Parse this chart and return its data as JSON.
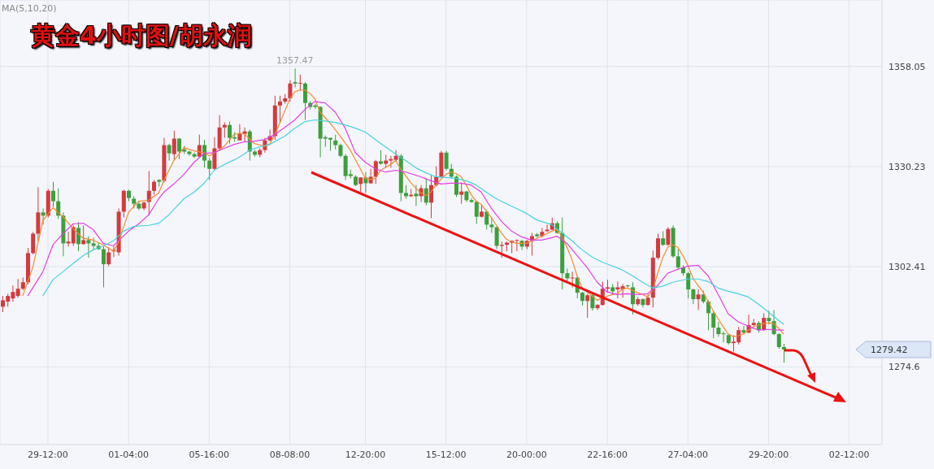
{
  "chart_data": {
    "type": "candlestick",
    "title": "黄金4小时图/胡永润",
    "annotations": [
      "MA(5,10,20)",
      {
        "text": "1357.47",
        "y": 1357.47
      },
      "1279.42"
    ],
    "categories": [
      null,
      null,
      null,
      null,
      null,
      null,
      null,
      null,
      null,
      "29-12:00",
      null,
      null,
      null,
      null,
      null,
      null,
      null,
      null,
      null,
      null,
      null,
      null,
      null,
      null,
      null,
      "01-04:00",
      null,
      null,
      null,
      null,
      null,
      null,
      null,
      null,
      null,
      null,
      null,
      null,
      null,
      null,
      null,
      "05-16:00",
      null,
      null,
      null,
      null,
      null,
      null,
      null,
      null,
      null,
      null,
      null,
      null,
      null,
      null,
      null,
      "08-08:00",
      null,
      null,
      null,
      null,
      null,
      null,
      null,
      null,
      null,
      null,
      null,
      null,
      null,
      null,
      "12-20:00",
      null,
      null,
      null,
      null,
      null,
      null,
      null,
      null,
      null,
      null,
      null,
      null,
      null,
      null,
      null,
      "15-12:00",
      null,
      null,
      null,
      null,
      null,
      null,
      null,
      null,
      null,
      null,
      null,
      null,
      null,
      null,
      null,
      "20-00:00",
      null,
      null,
      null,
      null,
      null,
      null,
      null,
      null,
      null,
      null,
      null,
      null,
      null,
      null,
      null,
      "22-16:00",
      null,
      null,
      null,
      null,
      null,
      null,
      null,
      null,
      null,
      null,
      null,
      null,
      null,
      null,
      null,
      "27-04:00",
      null,
      null,
      null,
      null,
      null,
      null,
      null,
      null,
      null,
      null,
      null,
      null,
      null,
      null,
      null,
      "29-20:00",
      null,
      null,
      null,
      null,
      null,
      null,
      null,
      null,
      null,
      null,
      null,
      null,
      null,
      null,
      null,
      "02-12:00",
      null,
      null,
      null,
      null,
      null,
      null
    ],
    "ohlc": [
      [
        1291.3,
        1294.3,
        1289.8,
        1293.1
      ],
      [
        1292.7,
        1294.9,
        1291.3,
        1294.3
      ],
      [
        1293.6,
        1297.2,
        1292.7,
        1295.4
      ],
      [
        1294.3,
        1299.0,
        1293.8,
        1296.3
      ],
      [
        1296.3,
        1299.4,
        1295.9,
        1298.1
      ],
      [
        1298.1,
        1307.6,
        1297.6,
        1306.2
      ],
      [
        1306.2,
        1312.1,
        1305.8,
        1311.6
      ],
      [
        1311.6,
        1324.5,
        1309.6,
        1317.5
      ],
      [
        1317.5,
        1318.6,
        1314.1,
        1316.6
      ],
      [
        1316.6,
        1324.0,
        1316.1,
        1323.5
      ],
      [
        1323.5,
        1326.0,
        1319.0,
        1320.6
      ],
      [
        1320.6,
        1324.2,
        1315.7,
        1316.6
      ],
      [
        1316.6,
        1317.5,
        1305.3,
        1308.9
      ],
      [
        1308.9,
        1312.1,
        1308.0,
        1309.4
      ],
      [
        1308.9,
        1313.9,
        1308.2,
        1313.4
      ],
      [
        1313.2,
        1314.8,
        1306.7,
        1308.7
      ],
      [
        1308.7,
        1313.9,
        1308.5,
        1309.8
      ],
      [
        1309.8,
        1310.9,
        1304.9,
        1308.9
      ],
      [
        1308.9,
        1310.5,
        1307.1,
        1308.2
      ],
      [
        1308.2,
        1309.1,
        1307.1,
        1307.3
      ],
      [
        1307.3,
        1308.0,
        1296.7,
        1303.1
      ],
      [
        1303.1,
        1307.8,
        1302.6,
        1306.4
      ],
      [
        1306.7,
        1308.0,
        1305.1,
        1307.1
      ],
      [
        1306.4,
        1318.6,
        1305.5,
        1317.7
      ],
      [
        1317.7,
        1323.8,
        1316.1,
        1323.5
      ],
      [
        1323.5,
        1323.8,
        1320.6,
        1321.5
      ],
      [
        1321.3,
        1322.0,
        1318.6,
        1319.9
      ],
      [
        1319.9,
        1320.6,
        1318.1,
        1318.6
      ],
      [
        1318.6,
        1320.6,
        1318.1,
        1320.2
      ],
      [
        1320.4,
        1329.0,
        1316.6,
        1323.5
      ],
      [
        1323.5,
        1326.5,
        1322.4,
        1326.0
      ],
      [
        1326.5,
        1326.7,
        1324.7,
        1326.0
      ],
      [
        1326.3,
        1338.2,
        1325.8,
        1336.2
      ],
      [
        1336.2,
        1336.6,
        1331.9,
        1333.9
      ],
      [
        1333.7,
        1340.2,
        1332.1,
        1338.0
      ],
      [
        1338.0,
        1338.2,
        1332.3,
        1334.4
      ],
      [
        1335.0,
        1336.0,
        1333.7,
        1334.4
      ],
      [
        1334.4,
        1334.6,
        1333.2,
        1333.7
      ],
      [
        1333.7,
        1334.1,
        1332.6,
        1333.0
      ],
      [
        1333.0,
        1339.1,
        1332.8,
        1336.2
      ],
      [
        1336.2,
        1337.7,
        1329.9,
        1331.9
      ],
      [
        1331.9,
        1332.6,
        1326.5,
        1329.6
      ],
      [
        1329.6,
        1338.4,
        1329.2,
        1335.3
      ],
      [
        1335.3,
        1344.5,
        1334.8,
        1341.1
      ],
      [
        1341.1,
        1342.5,
        1338.2,
        1341.8
      ],
      [
        1341.8,
        1342.7,
        1336.6,
        1338.2
      ],
      [
        1338.4,
        1339.8,
        1337.1,
        1338.0
      ],
      [
        1337.5,
        1342.0,
        1337.5,
        1339.5
      ],
      [
        1339.3,
        1341.1,
        1337.1,
        1340.0
      ],
      [
        1340.0,
        1340.5,
        1331.9,
        1334.4
      ],
      [
        1334.4,
        1334.8,
        1333.0,
        1333.5
      ],
      [
        1333.5,
        1335.3,
        1332.8,
        1334.8
      ],
      [
        1334.8,
        1338.2,
        1334.1,
        1337.5
      ],
      [
        1337.5,
        1340.5,
        1337.3,
        1338.7
      ],
      [
        1338.7,
        1349.9,
        1337.7,
        1347.2
      ],
      [
        1347.2,
        1349.9,
        1342.3,
        1348.3
      ],
      [
        1348.3,
        1350.4,
        1347.7,
        1349.2
      ],
      [
        1349.2,
        1354.2,
        1348.3,
        1353.3
      ],
      [
        1353.7,
        1357.47,
        1352.2,
        1353.3
      ],
      [
        1353.3,
        1355.8,
        1351.3,
        1353.5
      ],
      [
        1353.3,
        1353.7,
        1343.2,
        1347.9
      ],
      [
        1347.9,
        1348.3,
        1346.1,
        1346.8
      ],
      [
        1347.2,
        1347.7,
        1346.3,
        1346.8
      ],
      [
        1346.8,
        1347.0,
        1332.8,
        1338.0
      ],
      [
        1338.4,
        1338.9,
        1335.7,
        1338.0
      ],
      [
        1338.2,
        1338.2,
        1334.6,
        1337.7
      ],
      [
        1337.5,
        1339.1,
        1335.0,
        1336.2
      ],
      [
        1336.2,
        1336.6,
        1332.8,
        1333.2
      ],
      [
        1333.2,
        1333.7,
        1326.5,
        1327.6
      ],
      [
        1328.1,
        1329.4,
        1326.9,
        1327.6
      ],
      [
        1327.4,
        1327.8,
        1324.8,
        1325.1
      ],
      [
        1325.4,
        1327.2,
        1323.1,
        1327.2
      ],
      [
        1327.2,
        1328.7,
        1322.9,
        1325.6
      ],
      [
        1325.6,
        1329.6,
        1325.4,
        1327.4
      ],
      [
        1327.4,
        1332.1,
        1325.4,
        1331.7
      ],
      [
        1331.7,
        1334.8,
        1330.8,
        1331.0
      ],
      [
        1331.0,
        1333.5,
        1329.9,
        1331.9
      ],
      [
        1331.9,
        1333.2,
        1329.9,
        1332.3
      ],
      [
        1332.1,
        1334.8,
        1331.7,
        1333.2
      ],
      [
        1333.2,
        1333.7,
        1320.6,
        1322.9
      ],
      [
        1322.9,
        1325.1,
        1321.3,
        1322.0
      ],
      [
        1322.0,
        1324.0,
        1321.8,
        1322.4
      ],
      [
        1322.7,
        1325.1,
        1319.3,
        1322.0
      ],
      [
        1322.0,
        1325.1,
        1320.4,
        1324.2
      ],
      [
        1324.2,
        1327.0,
        1319.5,
        1320.2
      ],
      [
        1320.2,
        1327.8,
        1315.9,
        1325.1
      ],
      [
        1325.1,
        1330.3,
        1324.7,
        1327.4
      ],
      [
        1327.4,
        1334.6,
        1327.0,
        1334.1
      ],
      [
        1334.1,
        1334.6,
        1329.2,
        1329.6
      ],
      [
        1329.6,
        1331.0,
        1327.0,
        1327.4
      ],
      [
        1327.4,
        1327.8,
        1321.8,
        1322.4
      ],
      [
        1322.4,
        1325.8,
        1319.9,
        1323.3
      ],
      [
        1323.3,
        1323.5,
        1320.4,
        1320.9
      ],
      [
        1320.9,
        1321.5,
        1320.2,
        1320.4
      ],
      [
        1320.4,
        1320.6,
        1314.3,
        1316.3
      ],
      [
        1316.3,
        1319.5,
        1316.1,
        1317.7
      ],
      [
        1317.7,
        1318.2,
        1312.7,
        1314.1
      ],
      [
        1314.1,
        1316.1,
        1311.8,
        1313.4
      ],
      [
        1313.4,
        1313.6,
        1307.3,
        1308.2
      ],
      [
        1308.2,
        1309.4,
        1304.9,
        1308.5
      ],
      [
        1308.5,
        1309.4,
        1306.7,
        1309.1
      ],
      [
        1309.1,
        1309.8,
        1306.2,
        1309.6
      ],
      [
        1309.6,
        1310.0,
        1306.7,
        1309.8
      ],
      [
        1309.6,
        1309.8,
        1307.1,
        1308.0
      ],
      [
        1308.0,
        1309.8,
        1307.3,
        1309.6
      ],
      [
        1309.6,
        1311.8,
        1305.5,
        1310.9
      ],
      [
        1311.4,
        1311.8,
        1310.5,
        1310.9
      ],
      [
        1310.9,
        1313.2,
        1310.5,
        1312.1
      ],
      [
        1312.3,
        1314.1,
        1312.1,
        1312.7
      ],
      [
        1312.7,
        1316.1,
        1312.5,
        1314.5
      ],
      [
        1314.5,
        1315.0,
        1311.6,
        1311.8
      ],
      [
        1311.8,
        1316.1,
        1296.1,
        1300.6
      ],
      [
        1300.6,
        1301.9,
        1298.3,
        1299.2
      ],
      [
        1299.2,
        1301.0,
        1296.7,
        1299.4
      ],
      [
        1299.4,
        1299.9,
        1293.6,
        1295.2
      ],
      [
        1295.2,
        1295.4,
        1291.6,
        1292.9
      ],
      [
        1292.9,
        1294.9,
        1288.2,
        1294.5
      ],
      [
        1294.5,
        1294.9,
        1290.2,
        1290.9
      ],
      [
        1290.9,
        1292.0,
        1290.4,
        1291.8
      ],
      [
        1291.8,
        1298.3,
        1291.6,
        1296.3
      ],
      [
        1296.3,
        1298.8,
        1295.2,
        1296.7
      ],
      [
        1296.7,
        1297.6,
        1294.7,
        1295.6
      ],
      [
        1296.1,
        1298.3,
        1293.6,
        1296.7
      ],
      [
        1296.1,
        1297.6,
        1293.8,
        1297.0
      ],
      [
        1297.2,
        1297.4,
        1296.7,
        1297.0
      ],
      [
        1296.7,
        1298.1,
        1289.1,
        1292.0
      ],
      [
        1292.0,
        1294.0,
        1291.6,
        1293.4
      ],
      [
        1293.4,
        1293.6,
        1291.1,
        1291.8
      ],
      [
        1291.8,
        1294.7,
        1291.6,
        1293.8
      ],
      [
        1293.8,
        1306.9,
        1291.1,
        1304.9
      ],
      [
        1304.9,
        1311.6,
        1304.4,
        1310.3
      ],
      [
        1310.3,
        1312.3,
        1308.2,
        1308.5
      ],
      [
        1308.5,
        1313.4,
        1308.2,
        1312.9
      ],
      [
        1313.2,
        1313.9,
        1304.9,
        1305.3
      ],
      [
        1305.3,
        1307.3,
        1301.7,
        1302.2
      ],
      [
        1302.2,
        1302.8,
        1299.9,
        1300.6
      ],
      [
        1300.6,
        1301.0,
        1293.6,
        1296.1
      ],
      [
        1296.1,
        1296.3,
        1292.0,
        1293.4
      ],
      [
        1293.4,
        1296.1,
        1290.4,
        1294.7
      ],
      [
        1294.7,
        1295.8,
        1292.2,
        1292.7
      ],
      [
        1292.7,
        1293.1,
        1284.8,
        1289.5
      ],
      [
        1289.5,
        1290.0,
        1282.5,
        1285.5
      ],
      [
        1285.5,
        1287.1,
        1283.0,
        1283.7
      ],
      [
        1283.9,
        1284.4,
        1281.4,
        1283.7
      ],
      [
        1283.4,
        1283.7,
        1280.8,
        1281.2
      ],
      [
        1281.2,
        1283.4,
        1278.9,
        1281.6
      ],
      [
        1281.4,
        1285.7,
        1280.8,
        1284.8
      ],
      [
        1284.8,
        1285.9,
        1283.7,
        1284.1
      ],
      [
        1284.1,
        1289.1,
        1283.9,
        1286.2
      ],
      [
        1286.2,
        1287.9,
        1285.9,
        1286.8
      ],
      [
        1286.8,
        1287.3,
        1284.1,
        1284.8
      ],
      [
        1284.8,
        1289.5,
        1284.6,
        1288.2
      ],
      [
        1288.2,
        1290.2,
        1286.4,
        1287.3
      ],
      [
        1287.3,
        1290.4,
        1283.4,
        1283.7
      ],
      [
        1283.7,
        1283.9,
        1279.6,
        1280.1
      ],
      [
        1280.1,
        1281.0,
        1275.8,
        1279.42
      ],
      null,
      null,
      null,
      null,
      null,
      null,
      null,
      null,
      null,
      null,
      null,
      null,
      null,
      null,
      null,
      null,
      null,
      null,
      null
    ],
    "series": [
      {
        "type": "line",
        "color": "#f5892f",
        "values": [
          null,
          null,
          null,
          null,
          1294.3,
          null,
          1302.2,
          null,
          1315.2,
          null,
          1318.8,
          null,
          1316.3,
          null,
          1313.0,
          null,
          1310.3,
          null,
          1309.8,
          null,
          1308.5,
          null,
          1306.7,
          1309.1,
          null,
          1317.5,
          null,
          1320.6,
          null,
          1320.9,
          null,
          1322.9,
          1326.3,
          null,
          1331.9,
          null,
          1335.5,
          null,
          1334.6,
          null,
          1334.1,
          1333.2,
          null,
          1334.8,
          1335.9,
          null,
          1339.3,
          null,
          1339.3,
          null,
          1336.6,
          null,
          1335.9,
          1336.4,
          1339.1,
          1342.3,
          1345.6,
          1349.0,
          1351.0,
          1351.5,
          1351.5,
          1350.6,
          1349.0,
          1345.4,
          null,
          1342.3,
          null,
          1338.7,
          null,
          1334.8,
          null,
          1329.6,
          1326.9,
          1326.7,
          1326.9,
          1329.2,
          null,
          1330.8,
          1331.9,
          1329.6,
          null,
          1325.8,
          1324.2,
          1322.9,
          1322.2,
          1323.1,
          1325.1,
          1326.7,
          1328.1,
          1328.7,
          1328.3,
          1327.4,
          1325.1,
          1322.4,
          1320.6,
          1319.7,
          1317.9,
          1316.1,
          1313.9,
          1311.8,
          1310.0,
          1309.4,
          1308.9,
          null,
          1308.9,
          1309.6,
          null,
          1310.9,
          null,
          1312.3,
          1312.7,
          1310.9,
          1307.8,
          1304.4,
          1299.9,
          1296.5,
          1295.4,
          1294.3,
          1293.1,
          1293.8,
          null,
          1294.7,
          1294.9,
          1296.3,
          1296.5,
          null,
          1295.2,
          1294.7,
          1294.0,
          1295.8,
          1300.6,
          1304.9,
          1307.8,
          1308.5,
          1307.8,
          1305.5,
          1302.8,
          1299.2,
          1297.2,
          1295.4,
          1292.7,
          1290.2,
          1288.0,
          1285.7,
          1283.7,
          1283.0,
          1283.2,
          1283.7,
          1284.8,
          1285.7,
          1286.2,
          1286.6,
          1286.8,
          1286.6,
          1285.3,
          1283.7,
          null,
          null,
          null,
          null,
          null,
          null,
          null,
          null,
          null,
          null,
          null,
          null,
          null,
          null,
          null,
          null,
          null,
          null,
          null
        ]
      },
      {
        "type": "line",
        "color": "#e63ee6",
        "values": [
          null,
          null,
          null,
          null,
          null,
          1294.3,
          null,
          null,
          1301.0,
          null,
          1308.5,
          null,
          1311.6,
          null,
          1314.3,
          null,
          1314.5,
          null,
          1312.7,
          null,
          1308.9,
          null,
          1308.2,
          1309.6,
          null,
          1312.3,
          null,
          1314.3,
          null,
          1316.8,
          null,
          1321.3,
          1323.1,
          null,
          1325.4,
          null,
          1328.1,
          null,
          1331.4,
          null,
          1333.9,
          null,
          1334.1,
          null,
          1335.3,
          null,
          1336.4,
          null,
          1337.1,
          null,
          1337.3,
          null,
          1337.7,
          null,
          1339.1,
          null,
          1341.1,
          null,
          1343.2,
          null,
          1346.1,
          null,
          1348.3,
          null,
          1347.9,
          null,
          1345.4,
          null,
          1340.9,
          null,
          1334.1,
          null,
          1331.4,
          null,
          1329.6,
          null,
          1328.7,
          null,
          1329.2,
          null,
          1328.7,
          null,
          null,
          1327.4,
          null,
          1326.3,
          null,
          1325.4,
          null,
          1325.6,
          null,
          1325.6,
          null,
          1325.1,
          null,
          1323.1,
          null,
          1318.6,
          null,
          1315.0,
          null,
          1312.3,
          null,
          1310.7,
          null,
          1309.8,
          null,
          1309.8,
          null,
          1310.5,
          1310.9,
          null,
          1308.9,
          null,
          1305.5,
          null,
          1302.2,
          null,
          1298.1,
          null,
          1295.4,
          null,
          1294.7,
          null,
          1294.9,
          null,
          1294.7,
          null,
          1294.9,
          null,
          1297.2,
          null,
          1300.6,
          null,
          1301.7,
          null,
          1302.6,
          null,
          1302.8,
          null,
          1299.9,
          null,
          1294.7,
          null,
          1289.3,
          null,
          1287.1,
          null,
          1285.9,
          null,
          1284.8,
          null,
          1285.0,
          null,
          1284.8,
          1284.8,
          null,
          null,
          null,
          null,
          null,
          null,
          null,
          null,
          null,
          null,
          null,
          null,
          null,
          null,
          null,
          null,
          null,
          null,
          null
        ]
      },
      {
        "type": "line",
        "color": "#45d3e0",
        "values": [
          null,
          null,
          null,
          null,
          null,
          null,
          null,
          null,
          1294.3,
          null,
          1298.8,
          null,
          1301.0,
          null,
          1303.3,
          null,
          1305.5,
          null,
          1307.1,
          null,
          1308.2,
          null,
          1309.6,
          null,
          1312.3,
          null,
          1313.6,
          null,
          null,
          1313.9,
          null,
          1314.5,
          null,
          1316.8,
          null,
          null,
          1321.3,
          null,
          1323.1,
          null,
          1325.6,
          null,
          1329.2,
          null,
          1330.8,
          null,
          1332.1,
          null,
          1333.7,
          1334.8,
          null,
          1335.7,
          null,
          1336.4,
          null,
          null,
          1338.7,
          null,
          1340.9,
          null,
          1342.7,
          null,
          1343.2,
          null,
          1342.9,
          null,
          1342.5,
          null,
          1341.8,
          null,
          1340.9,
          null,
          1339.8,
          null,
          1337.7,
          null,
          1335.7,
          null,
          1333.7,
          null,
          1331.9,
          null,
          1329.9,
          null,
          1328.5,
          null,
          1327.4,
          null,
          1327.2,
          null,
          1326.9,
          null,
          1326.3,
          null,
          1325.1,
          null,
          1323.1,
          null,
          1321.3,
          null,
          1319.9,
          null,
          1318.6,
          null,
          1317.2,
          null,
          1315.4,
          null,
          null,
          1314.1,
          null,
          1311.8,
          null,
          1309.6,
          null,
          1307.1,
          null,
          1305.1,
          null,
          1303.7,
          null,
          1302.6,
          null,
          1301.5,
          null,
          1299.9,
          null,
          1298.1,
          null,
          1296.5,
          null,
          1297.0,
          null,
          1298.1,
          null,
          null,
          1299.0,
          null,
          1299.0,
          null,
          1298.3,
          null,
          1296.5,
          null,
          1295.6,
          null,
          1294.9,
          null,
          1294.0,
          null,
          1292.0,
          null,
          1289.8,
          null,
          1287.5,
          1286.4,
          null,
          null,
          null,
          null,
          null,
          null,
          null,
          null,
          null,
          null,
          null,
          null,
          null,
          null,
          null,
          null,
          null,
          null,
          null
        ]
      }
    ],
    "ylim": [
      1253,
      1376.5
    ],
    "yticks": [
      1358.05,
      1330.23,
      1302.41,
      1274.6
    ],
    "grid": true
  }
}
